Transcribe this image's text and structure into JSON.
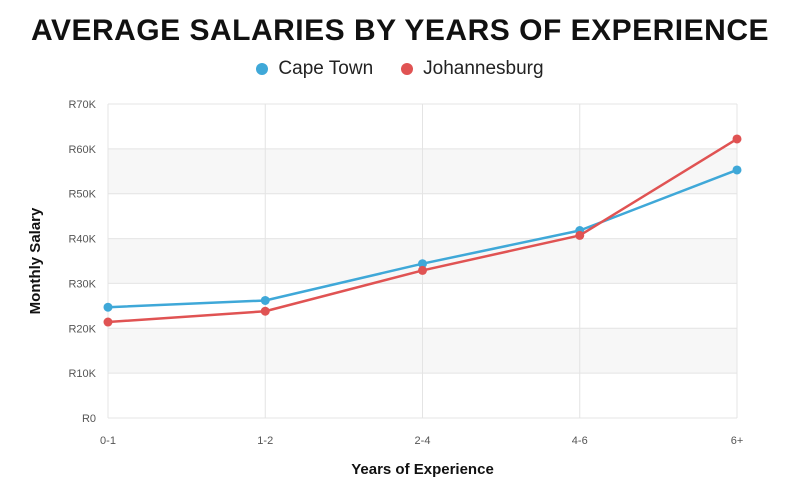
{
  "chart_data": {
    "type": "line",
    "title": "AVERAGE SALARIES BY YEARS OF EXPERIENCE",
    "xlabel": "Years of Experience",
    "ylabel": "Monthly Salary",
    "categories": [
      "0-1",
      "1-2",
      "2-4",
      "4-6",
      "6+"
    ],
    "ylim": [
      0,
      70000
    ],
    "yticks": [
      0,
      10000,
      20000,
      30000,
      40000,
      50000,
      60000,
      70000
    ],
    "ytick_labels": [
      "R0",
      "R10K",
      "R20K",
      "R30K",
      "R40K",
      "R50K",
      "R60K",
      "R70K"
    ],
    "legend_position": "top-center",
    "grid": true,
    "series": [
      {
        "name": "Cape Town",
        "color": "#3fa8d8",
        "values": [
          24700,
          26200,
          34400,
          41800,
          55300
        ]
      },
      {
        "name": "Johannesburg",
        "color": "#e05353",
        "values": [
          21400,
          23800,
          32900,
          40700,
          62200
        ]
      }
    ]
  }
}
